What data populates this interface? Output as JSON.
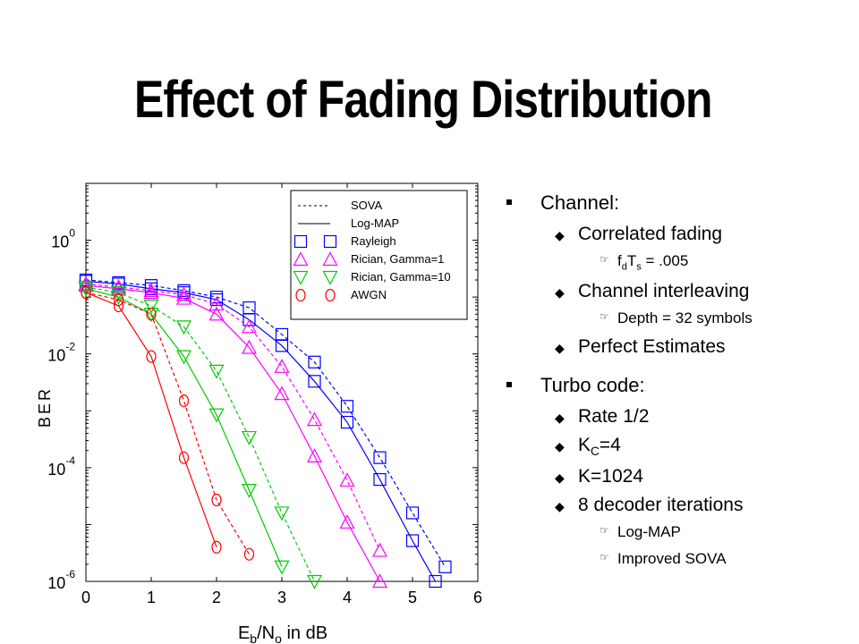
{
  "slide": {
    "title": "Effect of Fading Distribution"
  },
  "bullets": {
    "channel": {
      "label": "Channel:",
      "items": [
        {
          "label": "Correlated fading",
          "sub": [
            {
              "pre": "f",
              "sub1": "d",
              "mid": "T",
              "sub2": "s",
              "post": " = .005"
            }
          ]
        },
        {
          "label": "Channel interleaving",
          "sub": [
            {
              "text": "Depth = 32 symbols"
            }
          ]
        },
        {
          "label": "Perfect Estimates"
        }
      ]
    },
    "turbo": {
      "label": "Turbo code:",
      "items": [
        {
          "label": "Rate 1/2"
        },
        {
          "pre": "K",
          "sub": "C",
          "post": "=4"
        },
        {
          "label": "K=1024"
        },
        {
          "label": "8 decoder iterations"
        }
      ],
      "subitems": [
        "Log-MAP",
        "Improved SOVA"
      ]
    }
  },
  "chart_data": {
    "type": "line",
    "xlabel_main": "E",
    "xlabel_sub1": "b",
    "xlabel_mid": "/N",
    "xlabel_sub2": "o",
    "xlabel_post": " in dB",
    "ylabel": "BER",
    "xlim": [
      0,
      6
    ],
    "ylim": [
      1e-06,
      10
    ],
    "yscale": "log",
    "xticks": [
      "0",
      "1",
      "2",
      "3",
      "4",
      "5",
      "6"
    ],
    "yticks": [
      {
        "exp": "0",
        "value": 1
      },
      {
        "exp": "-2",
        "value": 0.01
      },
      {
        "exp": "-4",
        "value": 0.0001
      },
      {
        "exp": "-6",
        "value": 1e-06
      }
    ],
    "legend_position": "top-right",
    "legend": [
      {
        "label": "SOVA",
        "kind": "dashed"
      },
      {
        "label": "Log-MAP",
        "kind": "solid"
      },
      {
        "label": "Rayleigh",
        "marker": "square",
        "color": "#0000ff"
      },
      {
        "label": "Rician, Gamma=1",
        "marker": "triangle-up",
        "color": "#ff00ff"
      },
      {
        "label": "Rician, Gamma=10",
        "marker": "triangle-down",
        "color": "#00cc00"
      },
      {
        "label": "AWGN",
        "marker": "circle",
        "color": "#ff0000"
      }
    ],
    "series": [
      {
        "name": "Rayleigh",
        "decoder": "SOVA",
        "style": "dashed",
        "color": "#0000ff",
        "marker": "square",
        "x": [
          0,
          0.5,
          1,
          1.5,
          2,
          2.5,
          3,
          3.5,
          4,
          4.5,
          5,
          5.5
        ],
        "y": [
          0.2,
          0.18,
          0.16,
          0.13,
          0.1,
          0.065,
          0.022,
          0.0072,
          0.0012,
          0.00015,
          1.6e-05,
          1.8e-06
        ]
      },
      {
        "name": "Rayleigh",
        "decoder": "Log-MAP",
        "style": "solid",
        "color": "#0000ff",
        "marker": "square",
        "x": [
          0,
          0.5,
          1,
          1.5,
          2,
          2.5,
          3,
          3.5,
          4,
          4.5,
          5,
          5.35
        ],
        "y": [
          0.19,
          0.17,
          0.14,
          0.12,
          0.09,
          0.04,
          0.014,
          0.0033,
          0.00063,
          6.2e-05,
          5.2e-06,
          1e-06
        ]
      },
      {
        "name": "Rician, Gamma=1",
        "decoder": "SOVA",
        "style": "dashed",
        "color": "#ff00ff",
        "marker": "triangle-up",
        "x": [
          0,
          0.5,
          1,
          1.5,
          2,
          2.5,
          3,
          3.5,
          4,
          4.5
        ],
        "y": [
          0.17,
          0.15,
          0.13,
          0.11,
          0.075,
          0.03,
          0.006,
          0.0007,
          6e-05,
          3.5e-06
        ]
      },
      {
        "name": "Rician, Gamma=1",
        "decoder": "Log-MAP",
        "style": "solid",
        "color": "#ff00ff",
        "marker": "triangle-up",
        "x": [
          0,
          0.5,
          1,
          1.5,
          2,
          2.5,
          3,
          3.5,
          4,
          4.5
        ],
        "y": [
          0.16,
          0.14,
          0.12,
          0.095,
          0.05,
          0.013,
          0.002,
          0.00016,
          1.1e-05,
          1e-06
        ]
      },
      {
        "name": "Rician, Gamma=10",
        "decoder": "SOVA",
        "style": "dashed",
        "color": "#00cc00",
        "marker": "triangle-down",
        "x": [
          0,
          0.5,
          1,
          1.5,
          2,
          2.5,
          3,
          3.5
        ],
        "y": [
          0.15,
          0.12,
          0.07,
          0.03,
          0.005,
          0.00034,
          1.6e-05,
          1e-06
        ]
      },
      {
        "name": "Rician, Gamma=10",
        "decoder": "Log-MAP",
        "style": "solid",
        "color": "#00cc00",
        "marker": "triangle-down",
        "x": [
          0,
          0.5,
          1,
          1.5,
          2,
          2.5,
          3
        ],
        "y": [
          0.14,
          0.1,
          0.05,
          0.009,
          0.00085,
          4e-05,
          1.8e-06
        ]
      },
      {
        "name": "AWGN",
        "decoder": "SOVA",
        "style": "dashed",
        "color": "#ff0000",
        "marker": "circle",
        "x": [
          0,
          0.5,
          1,
          1.5,
          2,
          2.5
        ],
        "y": [
          0.12,
          0.09,
          0.05,
          0.0015,
          2.7e-05,
          3e-06
        ]
      },
      {
        "name": "AWGN",
        "decoder": "Log-MAP",
        "style": "solid",
        "color": "#ff0000",
        "marker": "circle",
        "x": [
          0,
          0.5,
          1,
          1.5,
          2
        ],
        "y": [
          0.12,
          0.07,
          0.009,
          0.00015,
          4e-06
        ]
      }
    ]
  }
}
